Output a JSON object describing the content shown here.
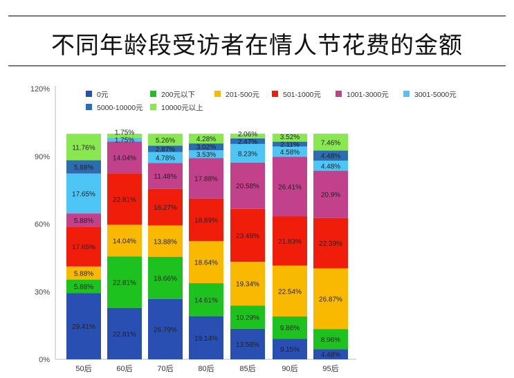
{
  "chart_data": {
    "type": "bar",
    "stacked": true,
    "title": "不同年龄段受访者在情人节花费的金额",
    "xlabel": "",
    "ylabel": "",
    "ylim": [
      0,
      120
    ],
    "yticks": [
      "0%",
      "30%",
      "60%",
      "90%",
      "120%"
    ],
    "grid": false,
    "legend_position": "top",
    "categories": [
      "50后",
      "60后",
      "70后",
      "80后",
      "85后",
      "90后",
      "95后"
    ],
    "series": [
      {
        "name": "0元",
        "color": "#2a4fb2",
        "values": [
          29.41,
          22.81,
          26.79,
          19.14,
          13.58,
          9.15,
          4.48
        ]
      },
      {
        "name": "200元以下",
        "color": "#1ec21e",
        "values": [
          5.88,
          22.81,
          18.66,
          14.61,
          10.29,
          9.86,
          8.96
        ]
      },
      {
        "name": "201-500元",
        "color": "#f9b900",
        "values": [
          5.88,
          14.04,
          13.88,
          18.64,
          19.34,
          22.54,
          26.87
        ]
      },
      {
        "name": "501-1000元",
        "color": "#f01d0b",
        "values": [
          17.65,
          22.81,
          16.27,
          18.89,
          23.46,
          21.83,
          22.39
        ]
      },
      {
        "name": "1001-3000元",
        "color": "#c1418b",
        "values": [
          5.88,
          14.04,
          11.48,
          17.88,
          20.58,
          26.41,
          20.9
        ]
      },
      {
        "name": "3001-5000元",
        "color": "#4dc5f5",
        "values": [
          17.65,
          1.75,
          4.78,
          3.53,
          8.23,
          4.58,
          4.48
        ]
      },
      {
        "name": "5000-10000元",
        "color": "#2c6cb0",
        "values": [
          5.88,
          0,
          2.87,
          3.02,
          2.47,
          2.11,
          4.48
        ]
      },
      {
        "name": "10000元以上",
        "color": "#89e852",
        "values": [
          11.76,
          1.75,
          5.26,
          4.28,
          2.06,
          3.52,
          7.46
        ]
      }
    ]
  }
}
